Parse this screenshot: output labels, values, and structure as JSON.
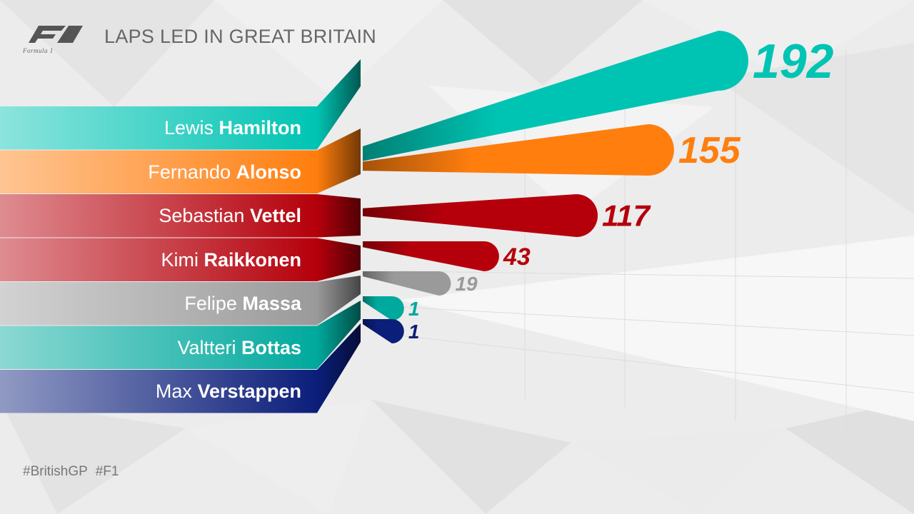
{
  "title": "LAPS LED IN GREAT BRITAIN",
  "logo_text": "Formula 1",
  "hashtags": "#BritishGP   #F1",
  "chart_data": {
    "type": "bar",
    "title": "LAPS LED IN GREAT BRITAIN",
    "xlabel": "",
    "ylabel": "",
    "categories": [
      "Lewis Hamilton",
      "Fernando Alonso",
      "Sebastian Vettel",
      "Kimi Raikkonen",
      "Felipe Massa",
      "Valtteri Bottas",
      "Max Verstappen"
    ],
    "first_names": [
      "Lewis",
      "Fernando",
      "Sebastian",
      "Kimi",
      "Felipe",
      "Valtteri",
      "Max"
    ],
    "last_names": [
      "Hamilton",
      "Alonso",
      "Vettel",
      "Raikkonen",
      "Massa",
      "Bottas",
      "Verstappen"
    ],
    "values": [
      192,
      155,
      117,
      43,
      19,
      1,
      1
    ],
    "colors": [
      "#00c4b3",
      "#ff7e0e",
      "#b5000b",
      "#b5000b",
      "#9a9a9a",
      "#00a99d",
      "#0b1e7a"
    ],
    "xlim": [
      0,
      192
    ],
    "grid": true
  }
}
